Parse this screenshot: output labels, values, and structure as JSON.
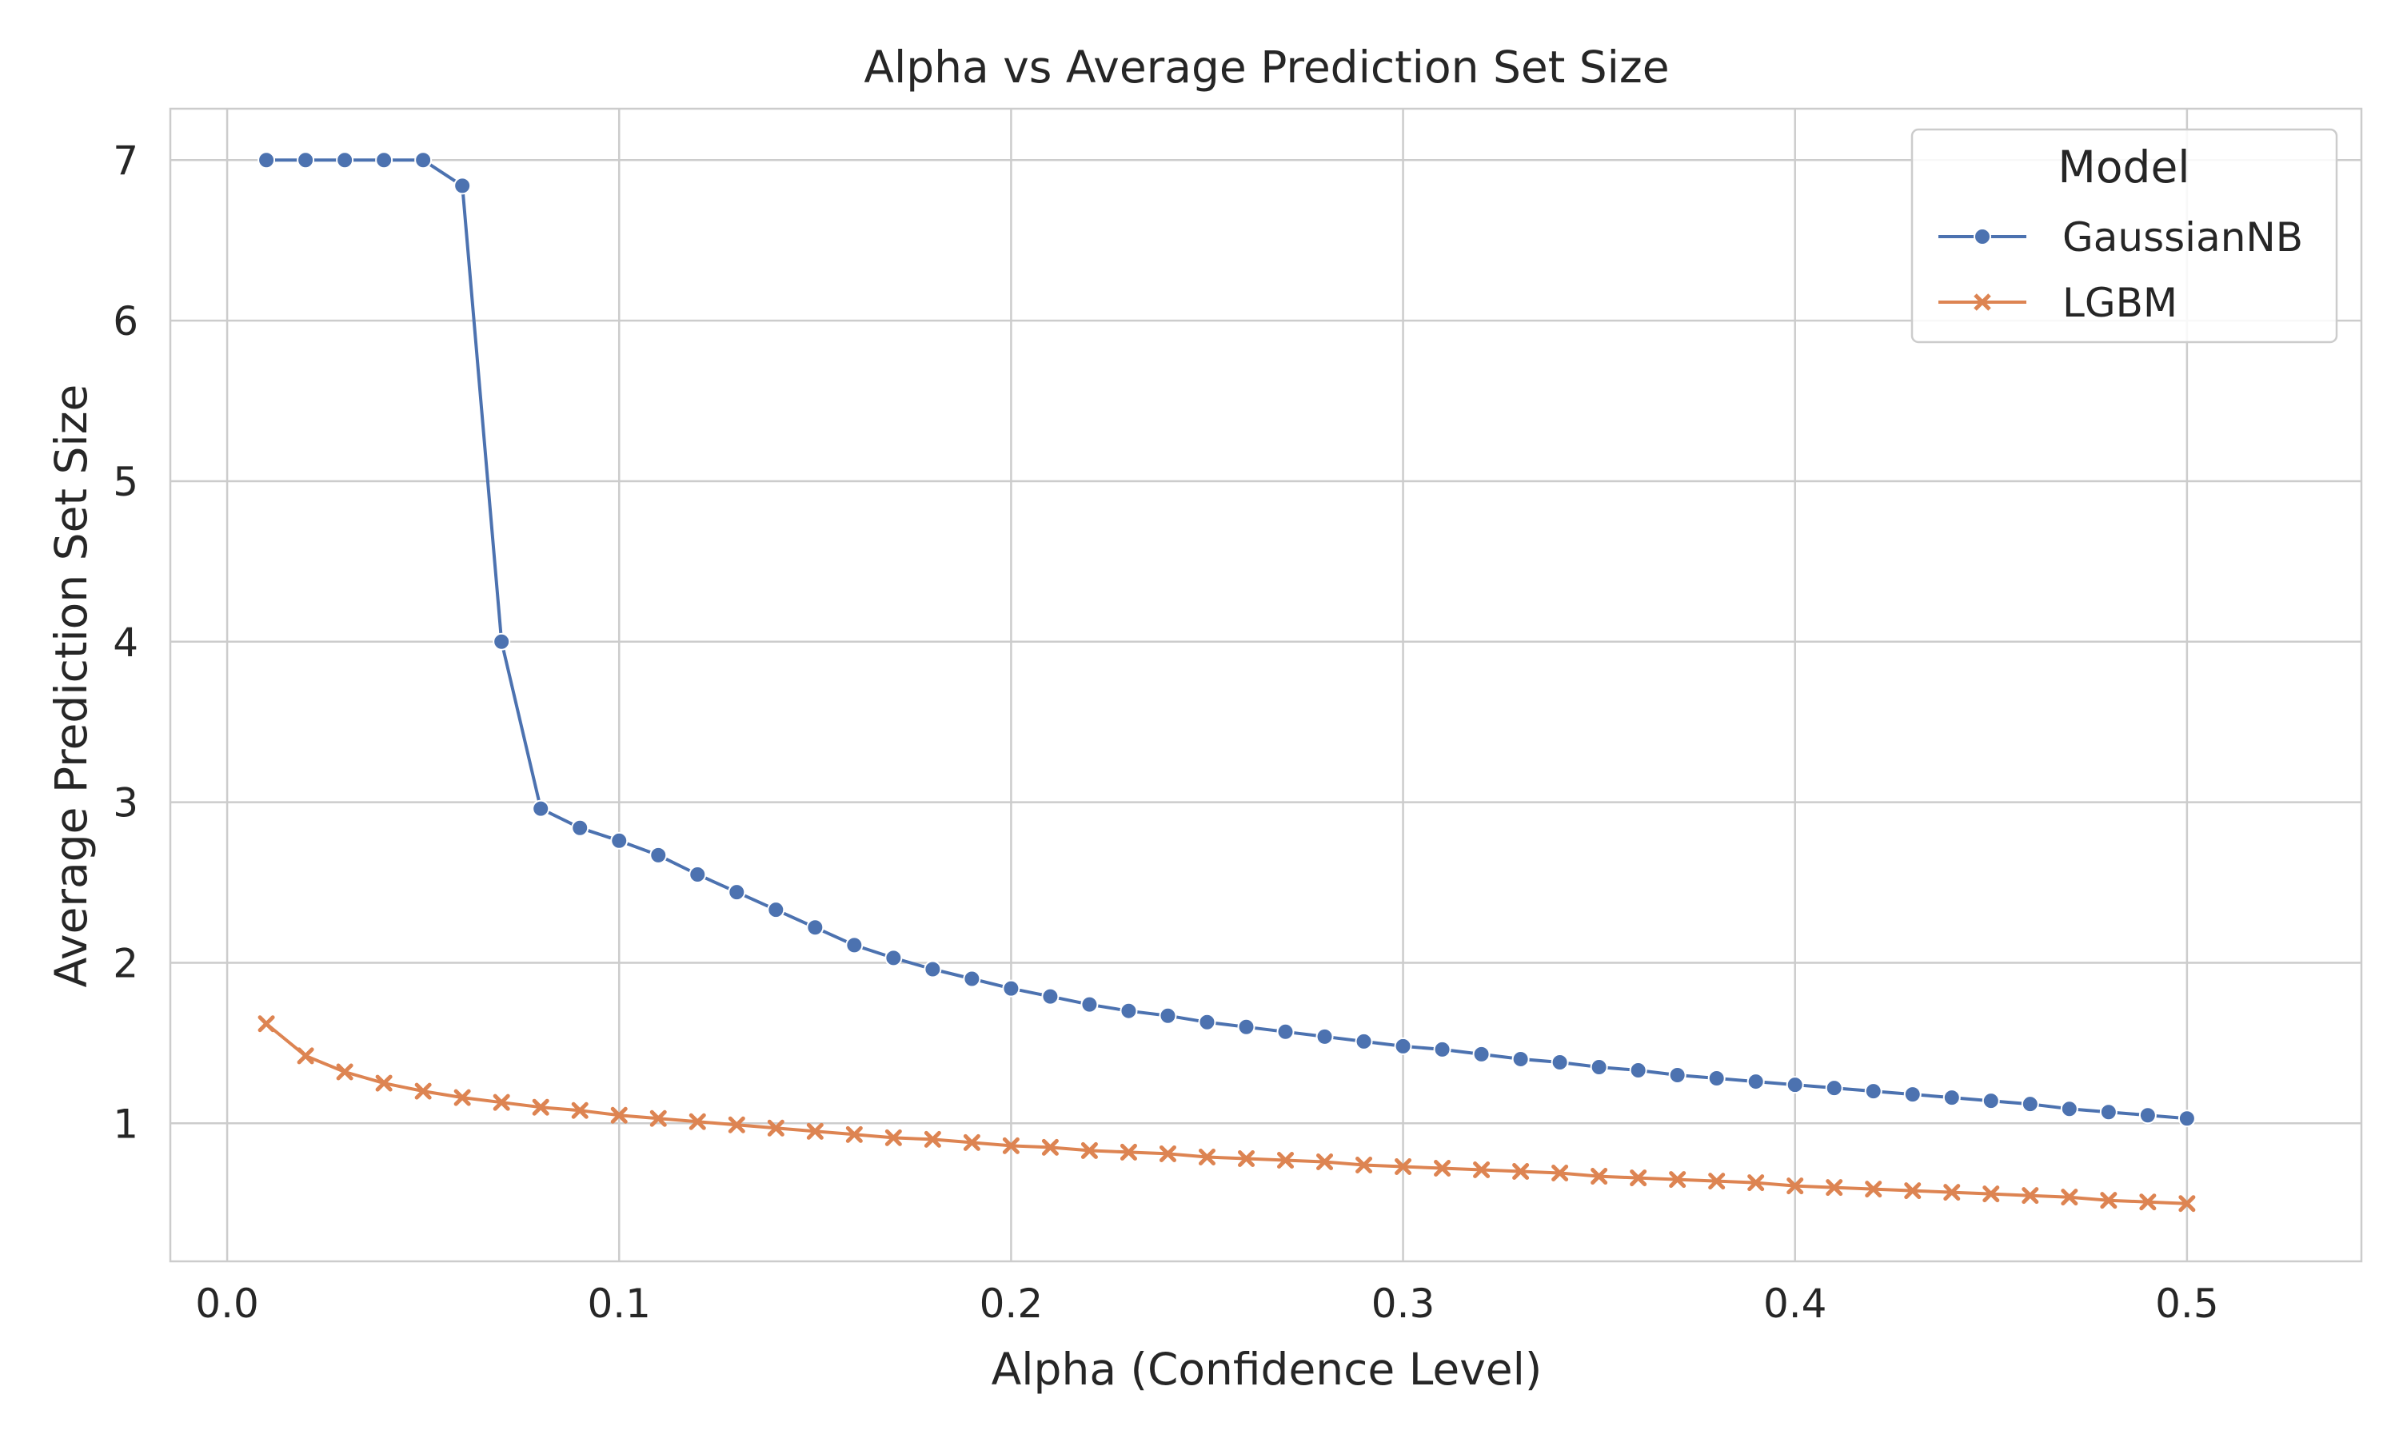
{
  "chart_data": {
    "type": "line",
    "title": "Alpha vs Average Prediction Set Size",
    "xlabel": "Alpha (Confidence Level)",
    "ylabel": "Average Prediction Set Size",
    "xlim": [
      -0.0145,
      0.5445
    ],
    "ylim": [
      0.14,
      7.32
    ],
    "x_ticks": [
      0.0,
      0.1,
      0.2,
      0.3,
      0.4,
      0.5
    ],
    "x_tick_labels": [
      "0.0",
      "0.1",
      "0.2",
      "0.3",
      "0.4",
      "0.5"
    ],
    "y_ticks": [
      1,
      2,
      3,
      4,
      5,
      6,
      7
    ],
    "y_tick_labels": [
      "1",
      "2",
      "3",
      "4",
      "5",
      "6",
      "7"
    ],
    "grid": true,
    "legend": {
      "title": "Model",
      "placement": "top-right"
    },
    "x": [
      0.01,
      0.02,
      0.03,
      0.04,
      0.05,
      0.06,
      0.07,
      0.08,
      0.09,
      0.1,
      0.11,
      0.12,
      0.13,
      0.14,
      0.15,
      0.16,
      0.17,
      0.18,
      0.19,
      0.2,
      0.21,
      0.22,
      0.23,
      0.24,
      0.25,
      0.26,
      0.27,
      0.28,
      0.29,
      0.3,
      0.31,
      0.32,
      0.33,
      0.34,
      0.35,
      0.36,
      0.37,
      0.38,
      0.39,
      0.4,
      0.41,
      0.42,
      0.43,
      0.44,
      0.45,
      0.46,
      0.47,
      0.48,
      0.49,
      0.5
    ],
    "series": [
      {
        "name": "GaussianNB",
        "color": "#4c72b0",
        "marker": "circle",
        "values": [
          7.0,
          7.0,
          7.0,
          7.0,
          7.0,
          6.84,
          4.0,
          2.96,
          2.84,
          2.76,
          2.67,
          2.55,
          2.44,
          2.33,
          2.22,
          2.11,
          2.03,
          1.96,
          1.9,
          1.84,
          1.79,
          1.74,
          1.7,
          1.67,
          1.63,
          1.6,
          1.57,
          1.54,
          1.51,
          1.48,
          1.46,
          1.43,
          1.4,
          1.38,
          1.35,
          1.33,
          1.3,
          1.28,
          1.26,
          1.24,
          1.22,
          1.2,
          1.18,
          1.16,
          1.14,
          1.12,
          1.09,
          1.07,
          1.05,
          1.03
        ]
      },
      {
        "name": "LGBM",
        "color": "#dd8452",
        "marker": "x",
        "values": [
          1.62,
          1.42,
          1.32,
          1.25,
          1.2,
          1.16,
          1.13,
          1.1,
          1.08,
          1.05,
          1.03,
          1.01,
          0.99,
          0.97,
          0.95,
          0.93,
          0.91,
          0.9,
          0.88,
          0.86,
          0.85,
          0.83,
          0.82,
          0.81,
          0.79,
          0.78,
          0.77,
          0.76,
          0.74,
          0.73,
          0.72,
          0.71,
          0.7,
          0.69,
          0.67,
          0.66,
          0.65,
          0.64,
          0.63,
          0.61,
          0.6,
          0.59,
          0.58,
          0.57,
          0.56,
          0.55,
          0.54,
          0.52,
          0.51,
          0.5
        ]
      }
    ]
  }
}
